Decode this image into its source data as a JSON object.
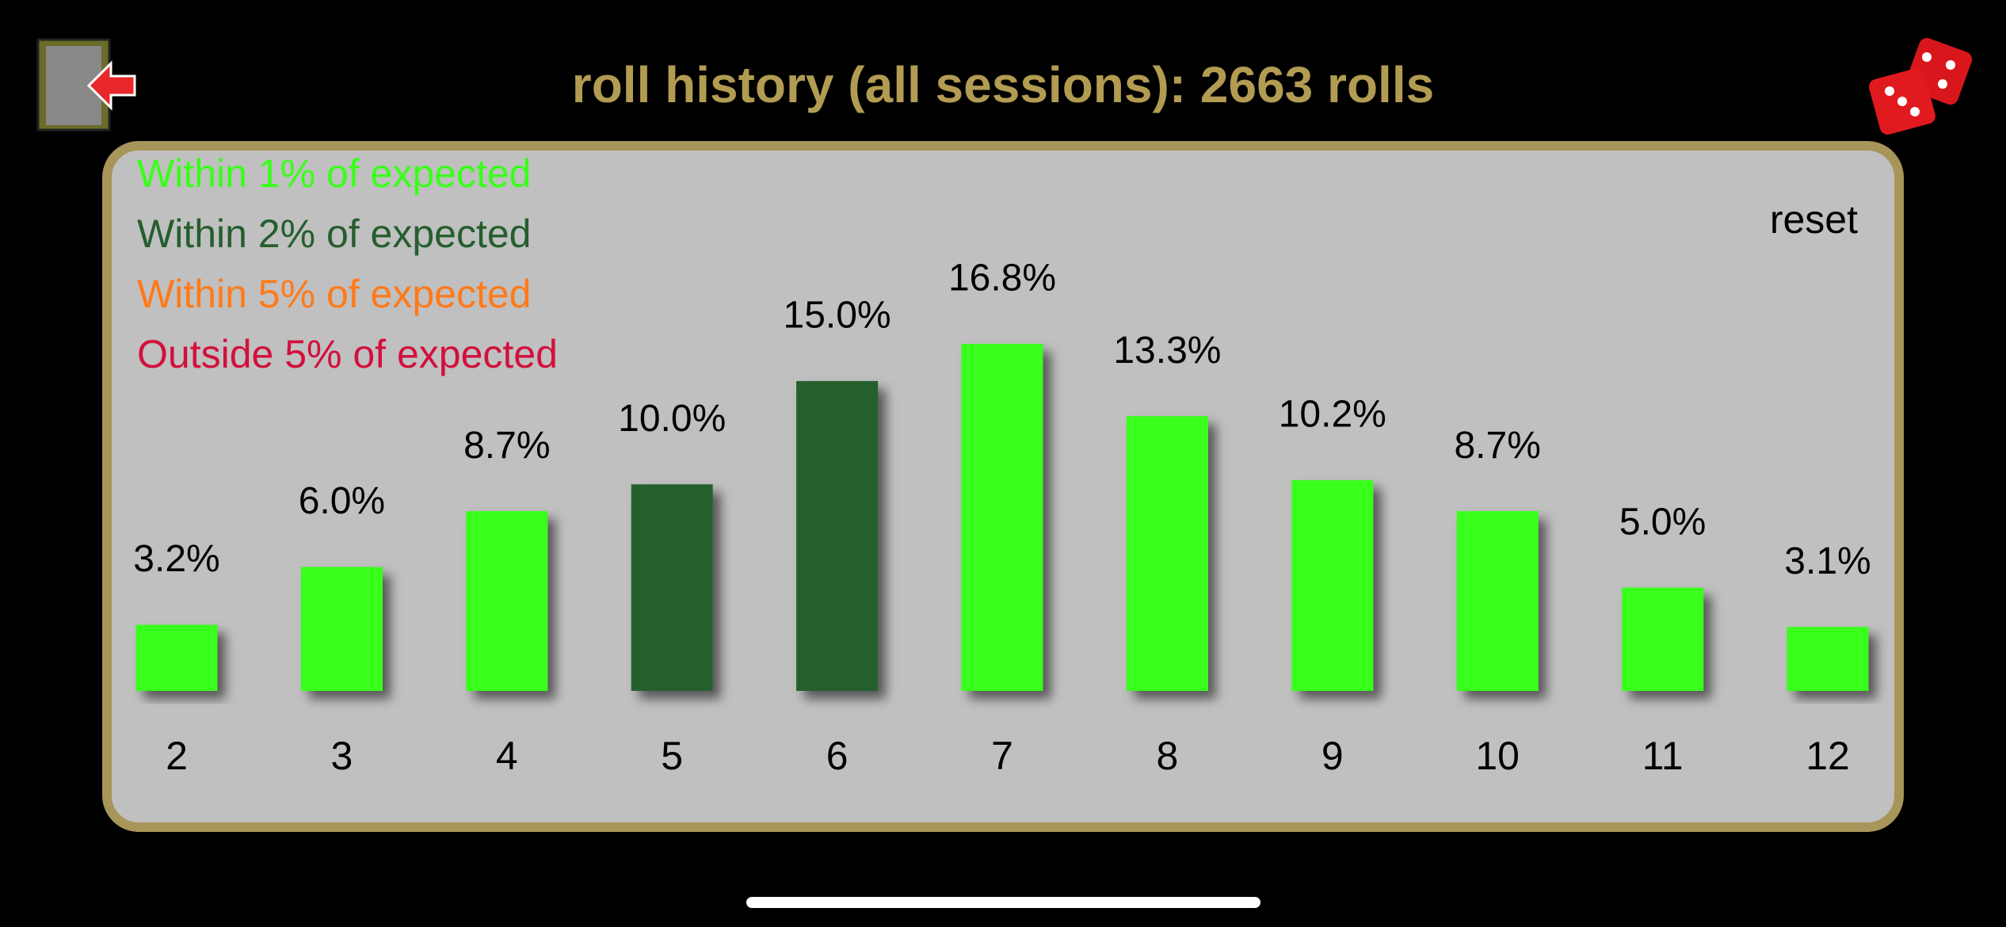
{
  "chart_data": {
    "type": "bar",
    "title": "roll history (all sessions): 2663 rolls",
    "categories": [
      "2",
      "3",
      "4",
      "5",
      "6",
      "7",
      "8",
      "9",
      "10",
      "11",
      "12"
    ],
    "values": [
      3.2,
      6.0,
      8.7,
      10.0,
      15.0,
      16.8,
      13.3,
      10.2,
      8.7,
      5.0,
      3.1
    ],
    "value_labels": [
      "3.2%",
      "6.0%",
      "8.7%",
      "10.0%",
      "15.0%",
      "16.8%",
      "13.3%",
      "10.2%",
      "8.7%",
      "5.0%",
      "3.1%"
    ],
    "colors": [
      "#39ff1a",
      "#39ff1a",
      "#39ff1a",
      "#255e2f",
      "#255e2f",
      "#39ff1a",
      "#39ff1a",
      "#39ff1a",
      "#39ff1a",
      "#39ff1a",
      "#39ff1a"
    ],
    "legend": [
      {
        "label": "Within 1% of expected",
        "color": "#39ff1a"
      },
      {
        "label": "Within 2% of expected",
        "color": "#255e2f"
      },
      {
        "label": "Within 5% of expected",
        "color": "#ff7a1a"
      },
      {
        "label": "Outside 5% of expected",
        "color": "#d2103c"
      }
    ]
  },
  "reset_button": "reset"
}
